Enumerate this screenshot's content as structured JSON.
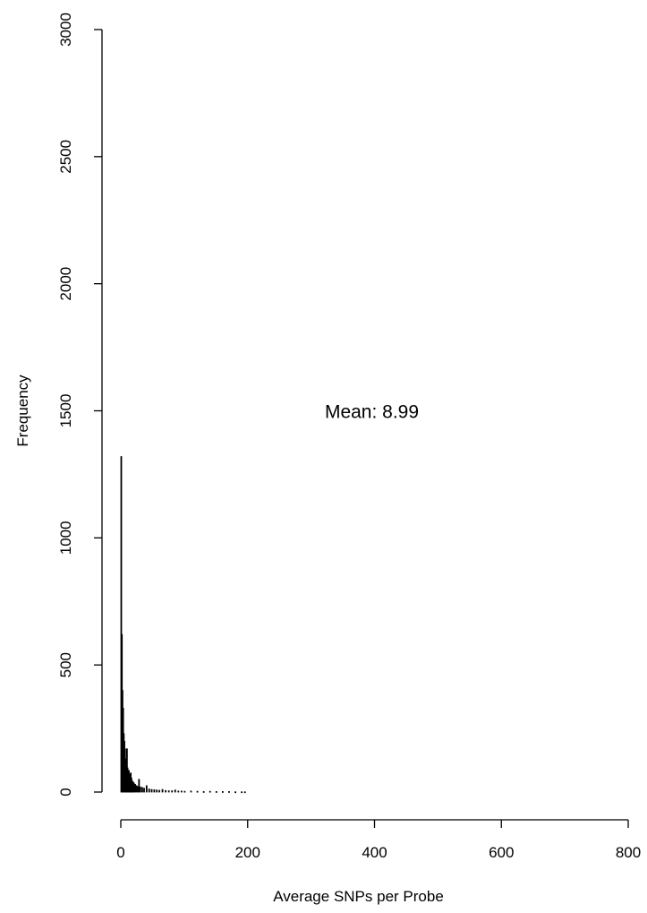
{
  "chart_data": {
    "type": "bar",
    "title": "",
    "xlabel": "Average SNPs per Probe",
    "ylabel": "Frequency",
    "xlim": [
      0,
      800
    ],
    "ylim": [
      0,
      3000
    ],
    "x_ticks": [
      0,
      200,
      400,
      600,
      800
    ],
    "y_ticks": [
      0,
      500,
      1000,
      1500,
      2000,
      2500,
      3000
    ],
    "grid": false,
    "annotation": {
      "text": "Mean:  8.99",
      "x": 400,
      "y": 1500
    },
    "bin_width": 1,
    "bins": [
      {
        "x": 0,
        "y": 1320
      },
      {
        "x": 1,
        "y": 620
      },
      {
        "x": 2,
        "y": 400
      },
      {
        "x": 3,
        "y": 330
      },
      {
        "x": 4,
        "y": 230
      },
      {
        "x": 5,
        "y": 200
      },
      {
        "x": 6,
        "y": 170
      },
      {
        "x": 7,
        "y": 130
      },
      {
        "x": 8,
        "y": 110
      },
      {
        "x": 9,
        "y": 170
      },
      {
        "x": 10,
        "y": 95
      },
      {
        "x": 11,
        "y": 80
      },
      {
        "x": 12,
        "y": 85
      },
      {
        "x": 13,
        "y": 70
      },
      {
        "x": 14,
        "y": 60
      },
      {
        "x": 15,
        "y": 75
      },
      {
        "x": 16,
        "y": 55
      },
      {
        "x": 17,
        "y": 45
      },
      {
        "x": 18,
        "y": 40
      },
      {
        "x": 19,
        "y": 38
      },
      {
        "x": 20,
        "y": 35
      },
      {
        "x": 22,
        "y": 30
      },
      {
        "x": 24,
        "y": 25
      },
      {
        "x": 26,
        "y": 22
      },
      {
        "x": 28,
        "y": 50
      },
      {
        "x": 30,
        "y": 20
      },
      {
        "x": 33,
        "y": 18
      },
      {
        "x": 36,
        "y": 15
      },
      {
        "x": 40,
        "y": 25
      },
      {
        "x": 44,
        "y": 12
      },
      {
        "x": 48,
        "y": 10
      },
      {
        "x": 52,
        "y": 9
      },
      {
        "x": 56,
        "y": 8
      },
      {
        "x": 60,
        "y": 7
      },
      {
        "x": 65,
        "y": 10
      },
      {
        "x": 70,
        "y": 6
      },
      {
        "x": 75,
        "y": 5
      },
      {
        "x": 80,
        "y": 5
      },
      {
        "x": 85,
        "y": 8
      },
      {
        "x": 90,
        "y": 4
      },
      {
        "x": 95,
        "y": 4
      },
      {
        "x": 100,
        "y": 3
      },
      {
        "x": 110,
        "y": 4
      },
      {
        "x": 120,
        "y": 3
      },
      {
        "x": 130,
        "y": 2
      },
      {
        "x": 140,
        "y": 3
      },
      {
        "x": 150,
        "y": 2
      },
      {
        "x": 160,
        "y": 2
      },
      {
        "x": 170,
        "y": 2
      },
      {
        "x": 180,
        "y": 1
      },
      {
        "x": 190,
        "y": 1
      },
      {
        "x": 195,
        "y": 1
      }
    ]
  }
}
